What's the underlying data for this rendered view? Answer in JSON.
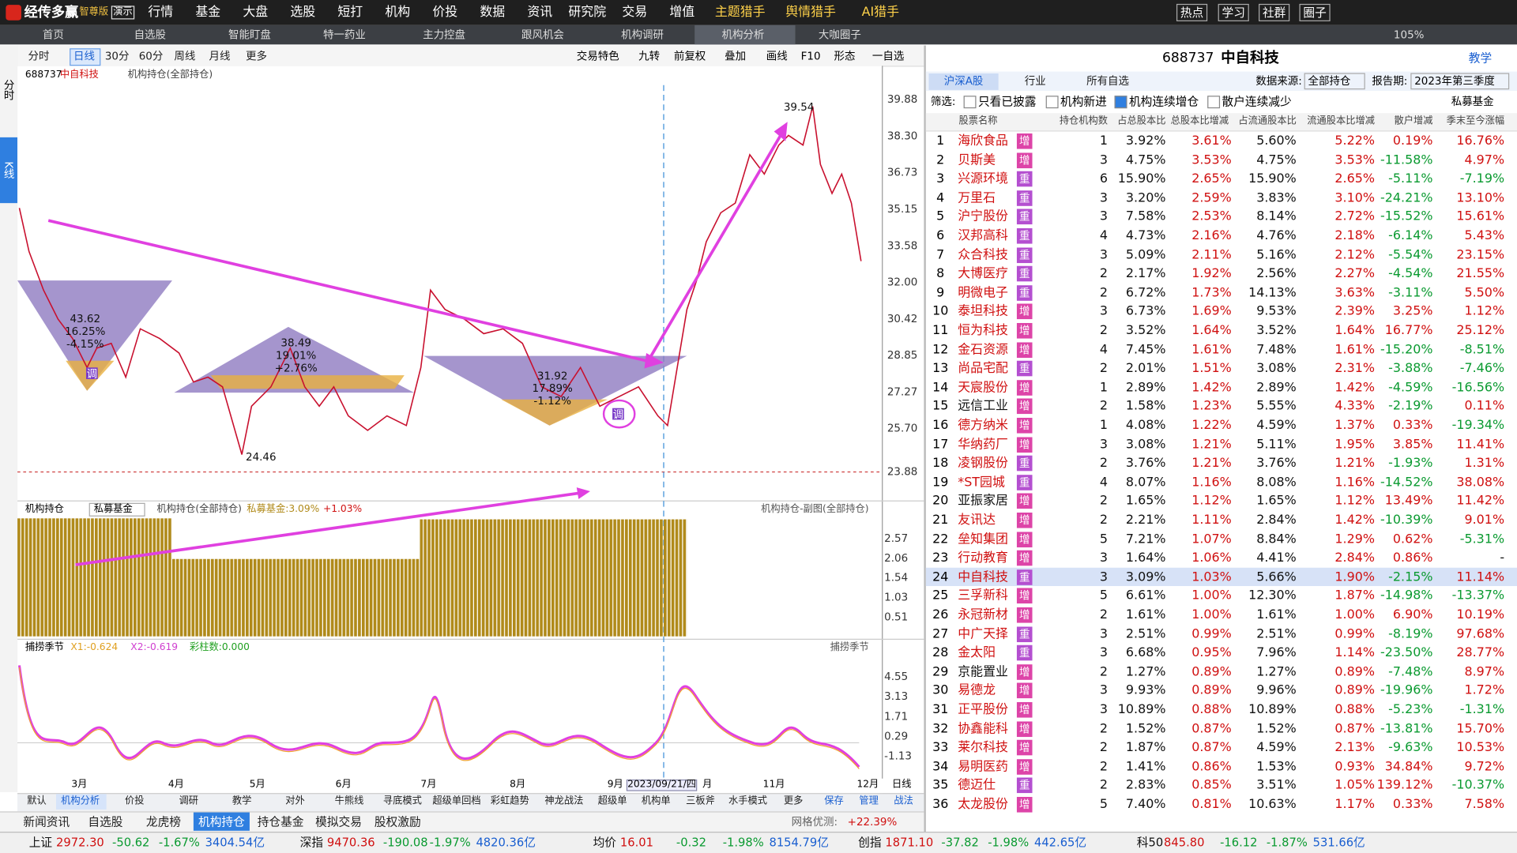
{
  "menu": {
    "logo": "经传多赢",
    "edition": "智尊版",
    "demo": "演示",
    "items": [
      "行情",
      "基金",
      "大盘",
      "选股",
      "短打",
      "机构",
      "价投",
      "数据",
      "资讯",
      "研究院",
      "交易",
      "增值",
      "主题猎手",
      "舆情猎手",
      "AI猎手"
    ],
    "right": [
      "热点",
      "学习",
      "社群",
      "圈子"
    ]
  },
  "tabs": {
    "items": [
      "首页",
      "自选股",
      "智能盯盘",
      "特一药业",
      "主力控盘",
      "跟风机会",
      "机构调研",
      "机构分析",
      "大咖圈子"
    ],
    "zoom": "105%"
  },
  "chart": {
    "side_tabs": [
      "分时",
      "K线"
    ],
    "toolbar_left": [
      "分时",
      "日线",
      "30分",
      "60分",
      "周线",
      "月线",
      "更多"
    ],
    "toolbar_right": [
      "交易特色",
      "九转",
      "前复权",
      "叠加",
      "画线",
      "F10",
      "形态",
      "一自选"
    ],
    "code": "688737",
    "name": "中自科技",
    "indicator": "机构持仓(全部持仓)",
    "price_ticks": [
      "39.88",
      "38.30",
      "36.73",
      "35.15",
      "33.58",
      "32.00",
      "30.42",
      "28.85",
      "27.27",
      "25.70",
      "23.88"
    ],
    "annotations": [
      [
        "43.62",
        "16.25%",
        "-4.15%"
      ],
      [
        "38.49",
        "19.01%",
        "+2.76%"
      ],
      [
        "31.92",
        "17.89%",
        "-1.12%"
      ]
    ],
    "high": "39.54",
    "low": "24.46",
    "badge": "调",
    "sub1": {
      "title": "机构持仓",
      "select": "私募基金",
      "indicator": "机构持仓(全部持仓)",
      "legend": "私募基金:3.09%",
      "change": "+1.03%",
      "right": "机构持仓-副图(全部持仓)",
      "ticks": [
        "2.57",
        "2.06",
        "1.54",
        "1.03",
        "0.51"
      ]
    },
    "sub2": {
      "title": "捕捞季节",
      "x1": "X1:-0.624",
      "x2": "X2:-0.619",
      "bars": "彩柱数:0.000",
      "right": "捕捞季节",
      "ticks": [
        "4.55",
        "3.13",
        "1.71",
        "0.29",
        "-1.13"
      ]
    },
    "x_labels": [
      "3月",
      "4月",
      "5月",
      "6月",
      "7月",
      "8月",
      "9月",
      "2023/09/21/四",
      "月",
      "11月",
      "12月",
      "日线"
    ]
  },
  "bottom_tabs": [
    "默认",
    "机构分析",
    "价投",
    "调研",
    "教学",
    "对外",
    "牛熊线",
    "寻底模式",
    "超级单回档",
    "彩虹趋势",
    "神龙战法",
    "超级单",
    "机构单",
    "三板斧",
    "水手模式",
    "更多",
    "保存",
    "管理",
    "战法"
  ],
  "bottom_nav": {
    "items": [
      "新闻资讯",
      "自选股",
      "龙虎榜",
      "机构持仓",
      "持仓基金",
      "模拟交易",
      "股权激励"
    ],
    "grid_label": "网格优测:",
    "grid_value": "+22.39%"
  },
  "status": [
    [
      "上证",
      "2972.30",
      "-50.62",
      "-1.67%",
      "3404.54亿"
    ],
    [
      "深指",
      "9470.36",
      "-190.08",
      "-1.97%",
      "4820.36亿"
    ],
    [
      "均价",
      "16.01",
      "-0.32",
      "-1.98%",
      "8154.79亿"
    ],
    [
      "创指",
      "1871.10",
      "-37.82",
      "-1.98%",
      "442.65亿"
    ],
    [
      "科50",
      "845.80",
      "-16.12",
      "-1.87%",
      "531.66亿"
    ]
  ],
  "panel": {
    "code": "688737",
    "name": "中自科技",
    "help": "教学",
    "tabs": [
      "沪深A股",
      "行业",
      "所有自选"
    ],
    "source_label": "数据来源:",
    "source": "全部持仓",
    "period_label": "报告期:",
    "period": "2023年第三季度",
    "filter_label": "筛选:",
    "filters": [
      "只看已披露",
      "机构新进",
      "机构连续增仓",
      "散户连续减少"
    ],
    "fund": "私募基金",
    "table": {
      "headers": [
        "股票名称",
        "持仓机构数",
        "占总股本比",
        "总股本比增减",
        "占流通股本比",
        "流通股本比增减",
        "散户增减",
        "季末至今涨幅"
      ],
      "rows": [
        [
          "1",
          "海欣食品",
          "增",
          "1",
          "3.92%",
          "3.61%",
          "5.60%",
          "5.22%",
          "0.19%",
          "16.76%"
        ],
        [
          "2",
          "贝斯美",
          "增",
          "3",
          "4.75%",
          "3.53%",
          "4.75%",
          "3.53%",
          "-11.58%",
          "4.97%"
        ],
        [
          "3",
          "兴源环境",
          "重",
          "6",
          "15.90%",
          "2.65%",
          "15.90%",
          "2.65%",
          "-5.11%",
          "-7.19%"
        ],
        [
          "4",
          "万里石",
          "重",
          "3",
          "3.20%",
          "2.59%",
          "3.83%",
          "3.10%",
          "-24.21%",
          "13.10%"
        ],
        [
          "5",
          "沪宁股份",
          "重",
          "3",
          "7.58%",
          "2.53%",
          "8.14%",
          "2.72%",
          "-15.52%",
          "15.61%"
        ],
        [
          "6",
          "汉邦高科",
          "重",
          "4",
          "4.73%",
          "2.16%",
          "4.76%",
          "2.18%",
          "-6.14%",
          "5.43%"
        ],
        [
          "7",
          "众合科技",
          "重",
          "3",
          "5.09%",
          "2.11%",
          "5.16%",
          "2.12%",
          "-5.54%",
          "23.15%"
        ],
        [
          "8",
          "大博医疗",
          "重",
          "2",
          "2.17%",
          "1.92%",
          "2.56%",
          "2.27%",
          "-4.54%",
          "21.55%"
        ],
        [
          "9",
          "明微电子",
          "重",
          "2",
          "6.72%",
          "1.73%",
          "14.13%",
          "3.63%",
          "-3.11%",
          "5.50%"
        ],
        [
          "10",
          "泰坦科技",
          "增",
          "3",
          "6.73%",
          "1.69%",
          "9.53%",
          "2.39%",
          "3.25%",
          "1.12%"
        ],
        [
          "11",
          "恒为科技",
          "增",
          "2",
          "3.52%",
          "1.64%",
          "3.52%",
          "1.64%",
          "16.77%",
          "25.12%"
        ],
        [
          "12",
          "金石资源",
          "增",
          "4",
          "7.45%",
          "1.61%",
          "7.48%",
          "1.61%",
          "-15.20%",
          "-8.51%"
        ],
        [
          "13",
          "尚品宅配",
          "重",
          "2",
          "2.01%",
          "1.51%",
          "3.08%",
          "2.31%",
          "-3.88%",
          "-7.46%"
        ],
        [
          "14",
          "天宸股份",
          "增",
          "1",
          "2.89%",
          "1.42%",
          "2.89%",
          "1.42%",
          "-4.59%",
          "-16.56%"
        ],
        [
          "15",
          "远信工业",
          "增",
          "2",
          "1.58%",
          "1.23%",
          "5.55%",
          "4.33%",
          "-2.19%",
          "0.11%"
        ],
        [
          "16",
          "德方纳米",
          "增",
          "1",
          "4.08%",
          "1.22%",
          "4.59%",
          "1.37%",
          "0.33%",
          "-19.34%"
        ],
        [
          "17",
          "华纳药厂",
          "增",
          "3",
          "3.08%",
          "1.21%",
          "5.11%",
          "1.95%",
          "3.85%",
          "11.41%"
        ],
        [
          "18",
          "凌钢股份",
          "重",
          "2",
          "3.76%",
          "1.21%",
          "3.76%",
          "1.21%",
          "-1.93%",
          "1.31%"
        ],
        [
          "19",
          "*ST园城",
          "重",
          "4",
          "8.07%",
          "1.16%",
          "8.08%",
          "1.16%",
          "-14.52%",
          "38.08%"
        ],
        [
          "20",
          "亚振家居",
          "增",
          "2",
          "1.65%",
          "1.12%",
          "1.65%",
          "1.12%",
          "13.49%",
          "11.42%"
        ],
        [
          "21",
          "友讯达",
          "增",
          "2",
          "2.21%",
          "1.11%",
          "2.84%",
          "1.42%",
          "-10.39%",
          "9.01%"
        ],
        [
          "22",
          "垒知集团",
          "增",
          "5",
          "7.21%",
          "1.07%",
          "8.84%",
          "1.29%",
          "0.62%",
          "-5.31%"
        ],
        [
          "23",
          "行动教育",
          "增",
          "3",
          "1.64%",
          "1.06%",
          "4.41%",
          "2.84%",
          "0.86%",
          "-"
        ],
        [
          "24",
          "中自科技",
          "重",
          "3",
          "3.09%",
          "1.03%",
          "5.66%",
          "1.90%",
          "-2.15%",
          "11.14%"
        ],
        [
          "25",
          "三孚新科",
          "增",
          "5",
          "6.61%",
          "1.00%",
          "12.30%",
          "1.87%",
          "-14.98%",
          "-13.37%"
        ],
        [
          "26",
          "永冠新材",
          "增",
          "2",
          "1.61%",
          "1.00%",
          "1.61%",
          "1.00%",
          "6.90%",
          "10.19%"
        ],
        [
          "27",
          "中广天择",
          "重",
          "3",
          "2.51%",
          "0.99%",
          "2.51%",
          "0.99%",
          "-8.19%",
          "97.68%"
        ],
        [
          "28",
          "金太阳",
          "重",
          "3",
          "6.68%",
          "0.95%",
          "7.96%",
          "1.14%",
          "-23.50%",
          "28.77%"
        ],
        [
          "29",
          "京能置业",
          "增",
          "2",
          "1.27%",
          "0.89%",
          "1.27%",
          "0.89%",
          "-7.48%",
          "8.97%"
        ],
        [
          "30",
          "易德龙",
          "增",
          "3",
          "9.93%",
          "0.89%",
          "9.96%",
          "0.89%",
          "-19.96%",
          "1.72%"
        ],
        [
          "31",
          "正平股份",
          "增",
          "3",
          "10.89%",
          "0.88%",
          "10.89%",
          "0.88%",
          "-5.23%",
          "-1.31%"
        ],
        [
          "32",
          "协鑫能科",
          "增",
          "2",
          "1.52%",
          "0.87%",
          "1.52%",
          "0.87%",
          "-13.81%",
          "15.70%"
        ],
        [
          "33",
          "莱尔科技",
          "增",
          "2",
          "1.87%",
          "0.87%",
          "4.59%",
          "2.13%",
          "-9.63%",
          "10.53%"
        ],
        [
          "34",
          "易明医药",
          "增",
          "2",
          "1.41%",
          "0.86%",
          "1.53%",
          "0.93%",
          "34.84%",
          "9.72%"
        ],
        [
          "35",
          "德迈仕",
          "重",
          "2",
          "2.83%",
          "0.85%",
          "3.51%",
          "1.05%",
          "139.12%",
          "-10.37%"
        ],
        [
          "36",
          "太龙股份",
          "增",
          "5",
          "7.40%",
          "0.81%",
          "10.63%",
          "1.17%",
          "0.33%",
          "7.58%"
        ]
      ]
    }
  }
}
